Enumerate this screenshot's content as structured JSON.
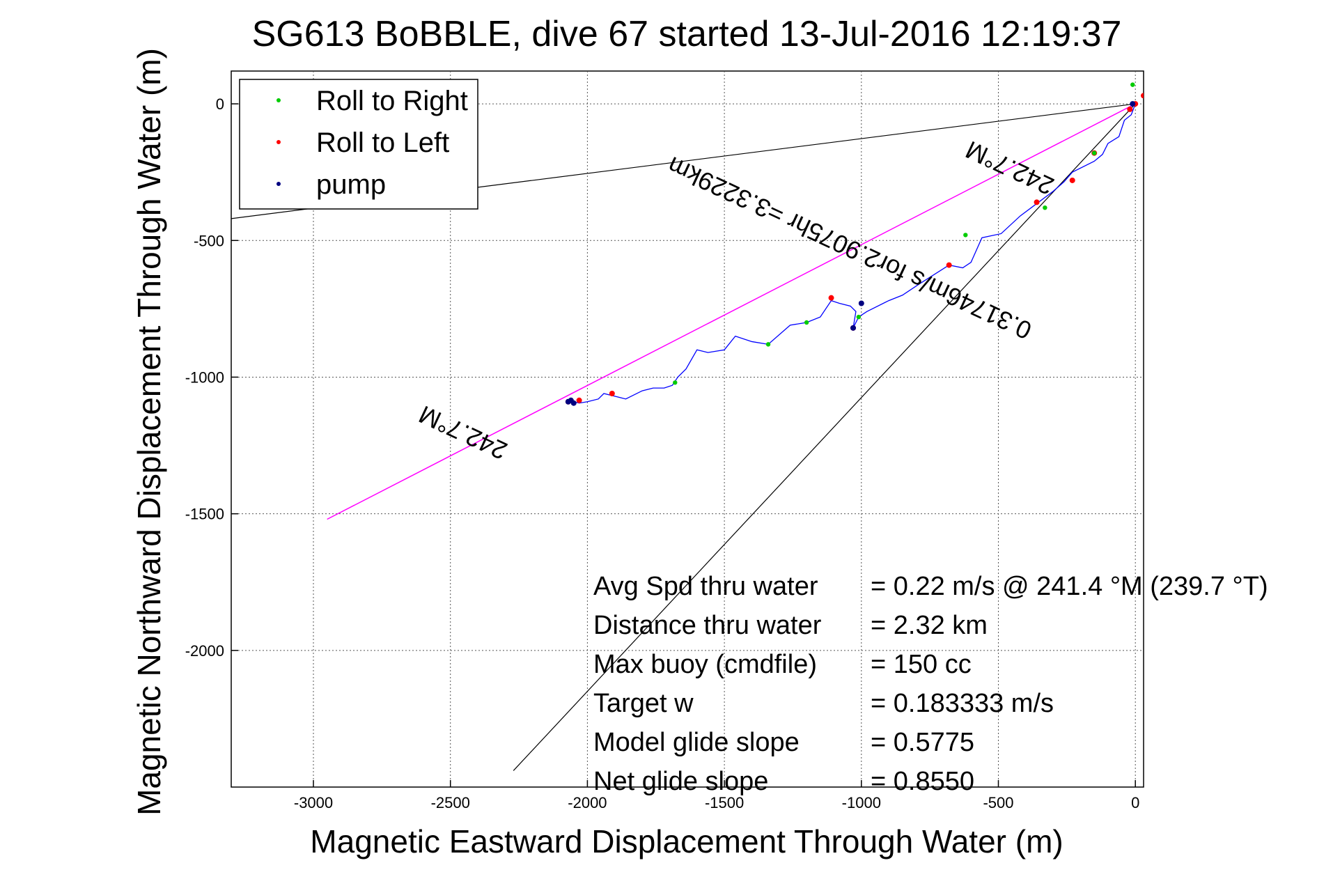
{
  "chart_data": {
    "type": "line",
    "title": "SG613 BoBBLE, dive 67 started 13-Jul-2016 12:19:37",
    "xlabel": "Magnetic Eastward Displacement Through Water (m)",
    "ylabel": "Magnetic Northward Displacement Through Water (m)",
    "xlim": [
      -3300,
      30
    ],
    "ylim": [
      -2500,
      120
    ],
    "xticks": [
      -3000,
      -2500,
      -2000,
      -1500,
      -1000,
      -500,
      0
    ],
    "yticks": [
      0,
      -500,
      -1000,
      -1500,
      -2000
    ],
    "grid": true,
    "legend": {
      "placement": "top-left",
      "entries": [
        {
          "label": "Roll to Right",
          "color": "#00cc00"
        },
        {
          "label": "Roll to Left",
          "color": "#ff0000"
        },
        {
          "label": "pump",
          "color": "#000080"
        }
      ]
    },
    "colors": {
      "track": "#0000ff",
      "heading": "#ff00ff",
      "reference": "#000000"
    },
    "heading_annotations": [
      "242.7°M",
      "242.7°M"
    ],
    "speed_annotation": "0.31746m/s for2.9075hr =3.3229km",
    "track": {
      "x": [
        0,
        -15,
        -40,
        -60,
        -100,
        -120,
        -150,
        -230,
        -260,
        -300,
        -360,
        -420,
        -490,
        -560,
        -600,
        -630,
        -680,
        -790,
        -850,
        -900,
        -980,
        -1010,
        -1030,
        -1020,
        -1040,
        -1080,
        -1110,
        -1150,
        -1200,
        -1260,
        -1340,
        -1400,
        -1460,
        -1500,
        -1560,
        -1600,
        -1640,
        -1670,
        -1690,
        -1720,
        -1760,
        -1800,
        -1860,
        -1900,
        -1940,
        -1960,
        -2000,
        -2030,
        -2050,
        -2070
      ],
      "y": [
        0,
        -40,
        -60,
        -120,
        -145,
        -185,
        -210,
        -250,
        -285,
        -320,
        -365,
        -410,
        -475,
        -490,
        -580,
        -600,
        -590,
        -660,
        -700,
        -720,
        -760,
        -780,
        -820,
        -760,
        -740,
        -730,
        -720,
        -780,
        -800,
        -810,
        -880,
        -870,
        -850,
        -900,
        -910,
        -900,
        -970,
        -1000,
        -1030,
        -1040,
        -1040,
        -1050,
        -1080,
        -1070,
        -1060,
        -1080,
        -1090,
        -1095,
        -1090,
        -1095
      ]
    },
    "roll_right_points": {
      "x": [
        -10,
        -150,
        -330,
        -620,
        -1010,
        -1200,
        -1340,
        -1680
      ],
      "y": [
        70,
        -180,
        -380,
        -480,
        -780,
        -800,
        -880,
        -1020
      ]
    },
    "roll_left_points": {
      "x": [
        0,
        30,
        -20,
        -150,
        -230,
        -360,
        -680,
        -1110,
        -1030,
        -1910,
        -2030,
        -2070
      ],
      "y": [
        0,
        30,
        -20,
        -180,
        -280,
        -360,
        -590,
        -710,
        -820,
        -1060,
        -1085,
        -1090
      ]
    },
    "pump_points": {
      "x": [
        -2070,
        -2060,
        -2050,
        -1030,
        -1000,
        -10
      ],
      "y": [
        -1090,
        -1085,
        -1095,
        -820,
        -730,
        0
      ]
    },
    "heading_line": {
      "x": [
        0,
        -2950
      ],
      "y": [
        0,
        -1520
      ]
    },
    "reference_lines": [
      {
        "x": [
          0,
          -3300
        ],
        "y": [
          0,
          -420
        ]
      },
      {
        "x": [
          0,
          -2270
        ],
        "y": [
          0,
          -2440
        ]
      }
    ]
  },
  "stats": {
    "rows": [
      {
        "label": "Avg Spd thru water",
        "value": "=  0.22 m/s @ 241.4  °M (239.7 °T)"
      },
      {
        "label": "Distance thru water",
        "value": "=  2.32 km"
      },
      {
        "label": "Max buoy (cmdfile)",
        "value": "= 150 cc"
      },
      {
        "label": "Target w",
        "value": "= 0.183333 m/s"
      },
      {
        "label": "Model glide slope",
        "value": "= 0.5775"
      },
      {
        "label": "Net glide slope",
        "value": "= 0.8550"
      }
    ]
  }
}
